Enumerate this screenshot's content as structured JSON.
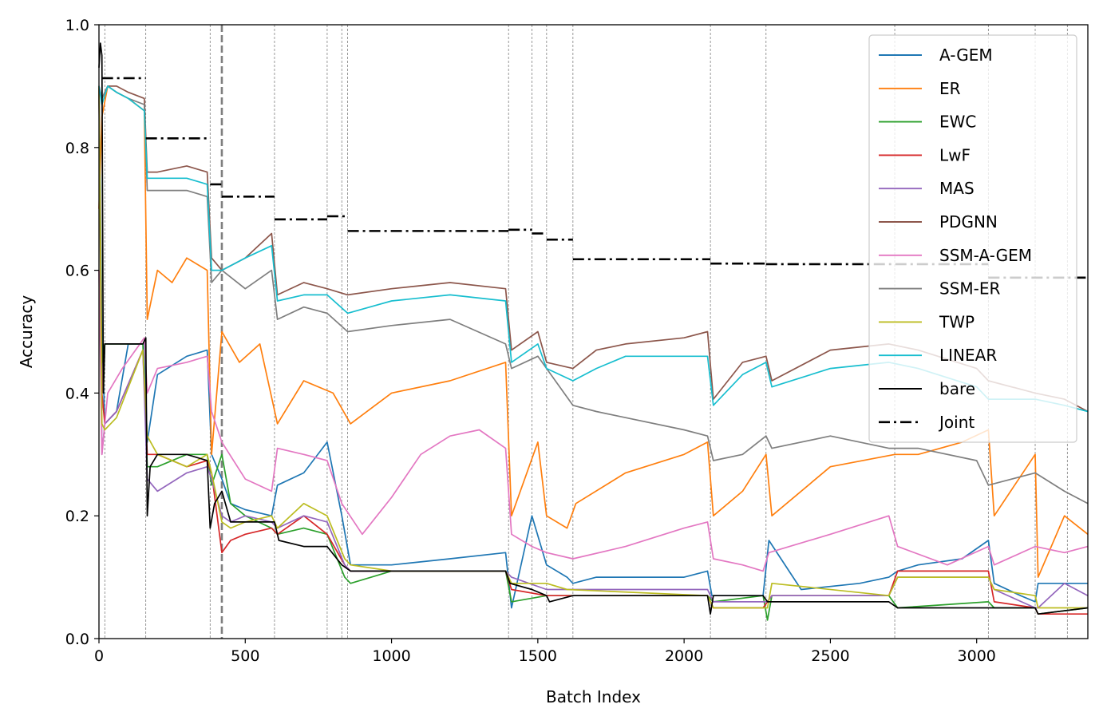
{
  "chart_data": {
    "type": "line",
    "title": "",
    "xlabel": "Batch Index",
    "ylabel": "Accuracy",
    "xlim": [
      0,
      3380
    ],
    "ylim": [
      0.0,
      1.0
    ],
    "xticks": [
      0,
      500,
      1000,
      1500,
      2000,
      2500,
      3000
    ],
    "xtick_labels": [
      "0",
      "500",
      "1000",
      "1500",
      "2000",
      "2500",
      "3000"
    ],
    "yticks": [
      0.0,
      0.2,
      0.4,
      0.6,
      0.8,
      1.0
    ],
    "ytick_labels": [
      "0.0",
      "0.2",
      "0.4",
      "0.6",
      "0.8",
      "1.0"
    ],
    "grid": false,
    "legend_position": "upper-right",
    "task_boundaries": [
      20,
      160,
      380,
      600,
      780,
      830,
      850,
      1400,
      1480,
      1530,
      1620,
      2090,
      2280,
      2720,
      3040,
      3200,
      3310
    ],
    "highlight_boundary": 420,
    "series": [
      {
        "name": "A-GEM",
        "color": "#1f77b4",
        "style": "solid",
        "x": [
          0,
          10,
          20,
          60,
          100,
          155,
          165,
          200,
          300,
          370,
          385,
          420,
          450,
          500,
          590,
          610,
          700,
          780,
          830,
          860,
          1000,
          1200,
          1390,
          1410,
          1480,
          1530,
          1600,
          1620,
          1700,
          1800,
          2000,
          2080,
          2095,
          2200,
          2270,
          2290,
          2400,
          2600,
          2700,
          2730,
          2800,
          2950,
          3040,
          3060,
          3150,
          3200,
          3210,
          3300,
          3380
        ],
        "y": [
          0.9,
          0.5,
          0.35,
          0.37,
          0.48,
          0.48,
          0.32,
          0.43,
          0.46,
          0.47,
          0.3,
          0.26,
          0.22,
          0.21,
          0.2,
          0.25,
          0.27,
          0.32,
          0.2,
          0.12,
          0.12,
          0.13,
          0.14,
          0.05,
          0.2,
          0.12,
          0.1,
          0.09,
          0.1,
          0.1,
          0.1,
          0.11,
          0.07,
          0.07,
          0.07,
          0.16,
          0.08,
          0.09,
          0.1,
          0.11,
          0.12,
          0.13,
          0.16,
          0.09,
          0.07,
          0.06,
          0.09,
          0.09,
          0.09
        ]
      },
      {
        "name": "ER",
        "color": "#ff7f0e",
        "style": "solid",
        "x": [
          0,
          10,
          30,
          60,
          100,
          155,
          165,
          200,
          250,
          300,
          370,
          385,
          420,
          480,
          550,
          610,
          700,
          800,
          860,
          1000,
          1200,
          1390,
          1410,
          1500,
          1530,
          1600,
          1630,
          1800,
          2000,
          2080,
          2100,
          2200,
          2280,
          2300,
          2500,
          2720,
          2800,
          2950,
          3040,
          3060,
          3200,
          3210,
          3300,
          3380
        ],
        "y": [
          0.7,
          0.85,
          0.9,
          0.89,
          0.88,
          0.86,
          0.52,
          0.6,
          0.58,
          0.62,
          0.6,
          0.3,
          0.5,
          0.45,
          0.48,
          0.35,
          0.42,
          0.4,
          0.35,
          0.4,
          0.42,
          0.45,
          0.2,
          0.32,
          0.2,
          0.18,
          0.22,
          0.27,
          0.3,
          0.32,
          0.2,
          0.24,
          0.3,
          0.2,
          0.28,
          0.3,
          0.3,
          0.32,
          0.34,
          0.2,
          0.3,
          0.1,
          0.2,
          0.17
        ]
      },
      {
        "name": "EWC",
        "color": "#2ca02c",
        "style": "solid",
        "x": [
          0,
          10,
          20,
          60,
          150,
          165,
          200,
          300,
          370,
          385,
          420,
          450,
          500,
          590,
          610,
          700,
          780,
          840,
          860,
          1000,
          1390,
          1410,
          1530,
          1600,
          2080,
          2100,
          2270,
          2285,
          2300,
          2700,
          2730,
          3040,
          3060,
          3200,
          3210,
          3380
        ],
        "y": [
          0.9,
          0.45,
          0.48,
          0.48,
          0.48,
          0.28,
          0.28,
          0.3,
          0.3,
          0.25,
          0.3,
          0.22,
          0.2,
          0.18,
          0.17,
          0.18,
          0.17,
          0.1,
          0.09,
          0.11,
          0.11,
          0.06,
          0.07,
          0.07,
          0.07,
          0.06,
          0.07,
          0.03,
          0.07,
          0.07,
          0.05,
          0.06,
          0.05,
          0.05,
          0.04,
          0.05
        ]
      },
      {
        "name": "LwF",
        "color": "#d62728",
        "style": "solid",
        "x": [
          0,
          10,
          20,
          60,
          150,
          165,
          200,
          300,
          370,
          385,
          420,
          450,
          500,
          590,
          610,
          700,
          780,
          840,
          860,
          1000,
          1390,
          1410,
          1530,
          1600,
          2080,
          2100,
          2270,
          2285,
          2300,
          2700,
          2730,
          3040,
          3060,
          3200,
          3210,
          3380
        ],
        "y": [
          0.9,
          0.4,
          0.35,
          0.37,
          0.47,
          0.3,
          0.3,
          0.28,
          0.29,
          0.27,
          0.14,
          0.16,
          0.17,
          0.18,
          0.17,
          0.2,
          0.17,
          0.12,
          0.11,
          0.11,
          0.11,
          0.08,
          0.07,
          0.07,
          0.07,
          0.05,
          0.05,
          0.06,
          0.07,
          0.07,
          0.11,
          0.11,
          0.06,
          0.05,
          0.04,
          0.04
        ]
      },
      {
        "name": "MAS",
        "color": "#9467bd",
        "style": "solid",
        "x": [
          0,
          10,
          20,
          60,
          150,
          165,
          200,
          300,
          370,
          385,
          420,
          450,
          500,
          590,
          610,
          700,
          780,
          840,
          860,
          1000,
          1390,
          1410,
          1530,
          1600,
          2080,
          2100,
          2270,
          2285,
          2300,
          2700,
          2730,
          3040,
          3060,
          3200,
          3210,
          3300,
          3380
        ],
        "y": [
          0.9,
          0.3,
          0.35,
          0.37,
          0.47,
          0.26,
          0.24,
          0.27,
          0.28,
          0.26,
          0.2,
          0.19,
          0.2,
          0.19,
          0.18,
          0.2,
          0.19,
          0.12,
          0.11,
          0.11,
          0.11,
          0.1,
          0.08,
          0.08,
          0.08,
          0.06,
          0.06,
          0.06,
          0.07,
          0.07,
          0.1,
          0.1,
          0.08,
          0.05,
          0.05,
          0.09,
          0.07
        ]
      },
      {
        "name": "PDGNN",
        "color": "#8c564b",
        "style": "solid",
        "x": [
          0,
          10,
          30,
          60,
          100,
          155,
          165,
          200,
          300,
          370,
          385,
          420,
          500,
          590,
          610,
          700,
          780,
          850,
          1000,
          1200,
          1390,
          1410,
          1500,
          1530,
          1620,
          1700,
          1800,
          2000,
          2080,
          2100,
          2200,
          2280,
          2300,
          2500,
          2700,
          2800,
          3000,
          3040,
          3200,
          3300,
          3380
        ],
        "y": [
          0.9,
          0.88,
          0.9,
          0.9,
          0.89,
          0.88,
          0.76,
          0.76,
          0.77,
          0.76,
          0.62,
          0.6,
          0.62,
          0.66,
          0.56,
          0.58,
          0.57,
          0.56,
          0.57,
          0.58,
          0.57,
          0.47,
          0.5,
          0.45,
          0.44,
          0.47,
          0.48,
          0.49,
          0.5,
          0.39,
          0.45,
          0.46,
          0.42,
          0.47,
          0.48,
          0.47,
          0.44,
          0.42,
          0.4,
          0.39,
          0.37
        ]
      },
      {
        "name": "SSM-A-GEM",
        "color": "#e377c2",
        "style": "solid",
        "x": [
          0,
          10,
          30,
          80,
          155,
          165,
          200,
          300,
          370,
          385,
          420,
          500,
          590,
          610,
          700,
          780,
          830,
          900,
          1000,
          1100,
          1200,
          1300,
          1390,
          1410,
          1480,
          1530,
          1620,
          1800,
          2000,
          2080,
          2100,
          2200,
          2270,
          2290,
          2500,
          2700,
          2730,
          2900,
          3040,
          3060,
          3200,
          3300,
          3380
        ],
        "y": [
          0.6,
          0.3,
          0.4,
          0.44,
          0.49,
          0.4,
          0.44,
          0.45,
          0.46,
          0.37,
          0.32,
          0.26,
          0.24,
          0.31,
          0.3,
          0.29,
          0.22,
          0.17,
          0.23,
          0.3,
          0.33,
          0.34,
          0.31,
          0.17,
          0.15,
          0.14,
          0.13,
          0.15,
          0.18,
          0.19,
          0.13,
          0.12,
          0.11,
          0.14,
          0.17,
          0.2,
          0.15,
          0.12,
          0.15,
          0.12,
          0.15,
          0.14,
          0.15
        ]
      },
      {
        "name": "SSM-ER",
        "color": "#7f7f7f",
        "style": "solid",
        "x": [
          0,
          10,
          30,
          60,
          100,
          155,
          165,
          200,
          300,
          370,
          385,
          420,
          500,
          590,
          610,
          700,
          780,
          850,
          1000,
          1200,
          1390,
          1410,
          1500,
          1530,
          1620,
          1700,
          1800,
          2000,
          2080,
          2100,
          2200,
          2280,
          2300,
          2500,
          2700,
          2800,
          3000,
          3040,
          3200,
          3300,
          3380
        ],
        "y": [
          0.9,
          0.88,
          0.9,
          0.89,
          0.88,
          0.87,
          0.73,
          0.73,
          0.73,
          0.72,
          0.58,
          0.6,
          0.57,
          0.6,
          0.52,
          0.54,
          0.53,
          0.5,
          0.51,
          0.52,
          0.48,
          0.44,
          0.46,
          0.44,
          0.38,
          0.37,
          0.36,
          0.34,
          0.33,
          0.29,
          0.3,
          0.33,
          0.31,
          0.33,
          0.31,
          0.31,
          0.29,
          0.25,
          0.27,
          0.24,
          0.22
        ]
      },
      {
        "name": "TWP",
        "color": "#bcbd22",
        "style": "solid",
        "x": [
          0,
          10,
          20,
          60,
          150,
          165,
          200,
          300,
          370,
          385,
          420,
          450,
          500,
          590,
          610,
          700,
          780,
          840,
          860,
          1000,
          1390,
          1410,
          1530,
          1600,
          2080,
          2100,
          2270,
          2285,
          2300,
          2700,
          2730,
          3040,
          3060,
          3200,
          3210,
          3380
        ],
        "y": [
          0.9,
          0.35,
          0.34,
          0.36,
          0.47,
          0.33,
          0.3,
          0.28,
          0.3,
          0.27,
          0.19,
          0.18,
          0.19,
          0.2,
          0.18,
          0.22,
          0.2,
          0.13,
          0.12,
          0.11,
          0.11,
          0.09,
          0.09,
          0.08,
          0.07,
          0.05,
          0.05,
          0.05,
          0.09,
          0.07,
          0.1,
          0.1,
          0.08,
          0.07,
          0.05,
          0.05
        ]
      },
      {
        "name": "LINEAR",
        "color": "#17becf",
        "style": "solid",
        "x": [
          0,
          10,
          30,
          60,
          100,
          155,
          165,
          200,
          300,
          370,
          385,
          420,
          500,
          590,
          610,
          700,
          780,
          850,
          1000,
          1200,
          1390,
          1410,
          1500,
          1530,
          1620,
          1700,
          1800,
          2000,
          2080,
          2100,
          2200,
          2280,
          2300,
          2500,
          2700,
          2800,
          3000,
          3040,
          3200,
          3300,
          3380
        ],
        "y": [
          0.9,
          0.87,
          0.9,
          0.89,
          0.88,
          0.86,
          0.75,
          0.75,
          0.75,
          0.74,
          0.6,
          0.6,
          0.62,
          0.64,
          0.55,
          0.56,
          0.56,
          0.53,
          0.55,
          0.56,
          0.55,
          0.45,
          0.48,
          0.44,
          0.42,
          0.44,
          0.46,
          0.46,
          0.46,
          0.38,
          0.43,
          0.45,
          0.41,
          0.44,
          0.45,
          0.44,
          0.41,
          0.39,
          0.39,
          0.38,
          0.37
        ]
      },
      {
        "name": "bare",
        "color": "#000000",
        "style": "solid",
        "x": [
          0,
          5,
          10,
          15,
          20,
          40,
          100,
          150,
          160,
          165,
          175,
          200,
          300,
          370,
          380,
          395,
          420,
          450,
          500,
          590,
          600,
          615,
          700,
          780,
          830,
          860,
          1000,
          1390,
          1405,
          1480,
          1530,
          1540,
          1620,
          1700,
          2080,
          2090,
          2100,
          2270,
          2285,
          2300,
          2700,
          2730,
          3040,
          3060,
          3200,
          3210,
          3380
        ],
        "y": [
          0.93,
          0.97,
          0.95,
          0.4,
          0.48,
          0.48,
          0.48,
          0.48,
          0.49,
          0.2,
          0.28,
          0.3,
          0.3,
          0.29,
          0.18,
          0.22,
          0.24,
          0.19,
          0.19,
          0.19,
          0.19,
          0.16,
          0.15,
          0.15,
          0.12,
          0.11,
          0.11,
          0.11,
          0.09,
          0.08,
          0.07,
          0.06,
          0.07,
          0.07,
          0.07,
          0.04,
          0.07,
          0.07,
          0.06,
          0.06,
          0.06,
          0.05,
          0.05,
          0.05,
          0.05,
          0.04,
          0.05
        ]
      },
      {
        "name": "Joint",
        "color": "#000000",
        "style": "dashdot",
        "segments": [
          {
            "x": [
              10,
              160
            ],
            "y": 0.913
          },
          {
            "x": [
              160,
              380
            ],
            "y": 0.815
          },
          {
            "x": [
              380,
              420
            ],
            "y": 0.74
          },
          {
            "x": [
              420,
              600
            ],
            "y": 0.72
          },
          {
            "x": [
              600,
              780
            ],
            "y": 0.683
          },
          {
            "x": [
              780,
              850
            ],
            "y": 0.688
          },
          {
            "x": [
              850,
              1400
            ],
            "y": 0.664
          },
          {
            "x": [
              1400,
              1480
            ],
            "y": 0.666
          },
          {
            "x": [
              1480,
              1530
            ],
            "y": 0.66
          },
          {
            "x": [
              1530,
              1620
            ],
            "y": 0.65
          },
          {
            "x": [
              1620,
              2090
            ],
            "y": 0.618
          },
          {
            "x": [
              2090,
              2280
            ],
            "y": 0.611
          },
          {
            "x": [
              2280,
              3040
            ],
            "y": 0.61
          },
          {
            "x": [
              3040,
              3380
            ],
            "y": 0.588
          }
        ]
      }
    ]
  }
}
